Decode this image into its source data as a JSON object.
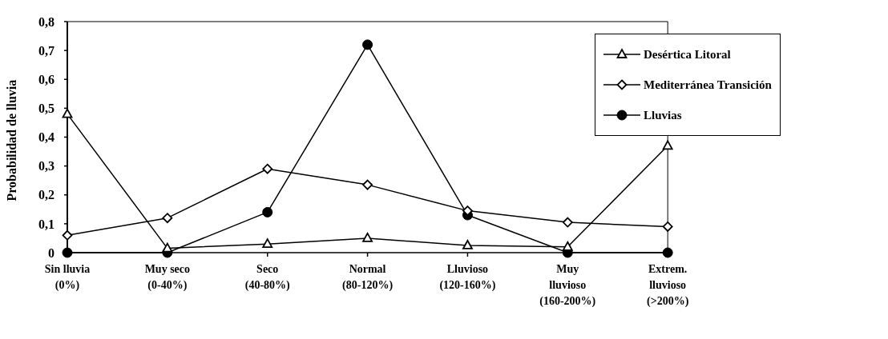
{
  "chart_data": {
    "type": "line",
    "ylabel": "Probabilidad de lluvia",
    "categories": [
      "Sin lluvia (0%)",
      "Muy seco (0-40%)",
      "Seco (40-80%)",
      "Normal (80-120%)",
      "Lluvioso (120-160%)",
      "Muy lluvioso (160-200%)",
      "Extrem. lluvioso (>200%)"
    ],
    "series": [
      {
        "name": "Desértica Litoral",
        "color": "#000000",
        "marker": "triangle",
        "values": [
          0.48,
          0.015,
          0.03,
          0.05,
          0.025,
          0.02,
          0.37
        ]
      },
      {
        "name": "Mediterránea Transición",
        "color": "#000000",
        "marker": "diamond",
        "values": [
          0.06,
          0.12,
          0.29,
          0.235,
          0.145,
          0.105,
          0.09
        ]
      },
      {
        "name": "Lluvias",
        "color": "#000000",
        "marker": "circle",
        "values": [
          0,
          0,
          0.14,
          0.72,
          0.13,
          0,
          0
        ]
      }
    ],
    "ylim": [
      0,
      0.8
    ],
    "yticks": [
      {
        "value": 0,
        "label": "0"
      },
      {
        "value": 0.1,
        "label": "0,1"
      },
      {
        "value": 0.2,
        "label": "0,2"
      },
      {
        "value": 0.3,
        "label": "0,3"
      },
      {
        "value": 0.4,
        "label": "0,4"
      },
      {
        "value": 0.5,
        "label": "0,5"
      },
      {
        "value": 0.6,
        "label": "0,6"
      },
      {
        "value": 0.7,
        "label": "0,7"
      },
      {
        "value": 0.8,
        "label": "0,8"
      }
    ],
    "grid": false,
    "legend": "top right",
    "line_style": "solid"
  }
}
